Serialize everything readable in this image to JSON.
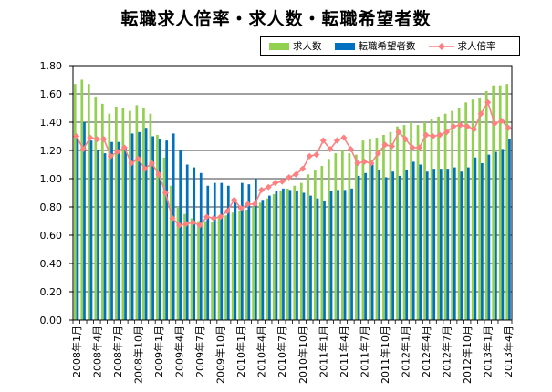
{
  "chart_data": {
    "type": "bar",
    "title": "転職求人倍率・求人数・転職希望者数",
    "xlabel": "",
    "ylabel": "",
    "ylim": [
      0,
      1.8
    ],
    "yticks": [
      "0.00",
      "0.20",
      "0.40",
      "0.60",
      "0.80",
      "1.00",
      "1.20",
      "1.40",
      "1.60",
      "1.80"
    ],
    "grid": true,
    "legend_position": "top-right",
    "categories": [
      "2008年1月",
      "2008年2月",
      "2008年3月",
      "2008年4月",
      "2008年5月",
      "2008年6月",
      "2008年7月",
      "2008年8月",
      "2008年9月",
      "2008年10月",
      "2008年11月",
      "2008年12月",
      "2009年1月",
      "2009年2月",
      "2009年3月",
      "2009年4月",
      "2009年5月",
      "2009年6月",
      "2009年7月",
      "2009年8月",
      "2009年9月",
      "2009年10月",
      "2009年11月",
      "2009年12月",
      "2010年1月",
      "2010年2月",
      "2010年3月",
      "2010年4月",
      "2010年5月",
      "2010年6月",
      "2010年7月",
      "2010年8月",
      "2010年9月",
      "2010年10月",
      "2010年11月",
      "2010年12月",
      "2011年1月",
      "2011年2月",
      "2011年3月",
      "2011年4月",
      "2011年5月",
      "2011年6月",
      "2011年7月",
      "2011年8月",
      "2011年9月",
      "2011年10月",
      "2011年11月",
      "2011年12月",
      "2012年1月",
      "2012年2月",
      "2012年3月",
      "2012年4月",
      "2012年5月",
      "2012年6月",
      "2012年7月",
      "2012年8月",
      "2012年9月",
      "2012年10月",
      "2012年11月",
      "2012年12月",
      "2013年1月",
      "2013年2月",
      "2013年3月",
      "2013年4月"
    ],
    "xtick_labels": [
      "2008年1月",
      "2008年4月",
      "2008年7月",
      "2008年10月",
      "2009年1月",
      "2009年4月",
      "2009年7月",
      "2009年10月",
      "2010年1月",
      "2010年4月",
      "2010年7月",
      "2010年10月",
      "2011年1月",
      "2011年4月",
      "2011年7月",
      "2011年10月",
      "2012年1月",
      "2012年4月",
      "2012年7月",
      "2012年10月",
      "2013年1月",
      "2013年4月"
    ],
    "xtick_indices": [
      0,
      3,
      6,
      9,
      12,
      15,
      18,
      21,
      24,
      27,
      30,
      33,
      36,
      39,
      42,
      45,
      48,
      51,
      54,
      57,
      60,
      63
    ],
    "series": [
      {
        "name": "求人数",
        "kind": "bar",
        "color": "#92d050",
        "values": [
          1.67,
          1.7,
          1.67,
          1.58,
          1.53,
          1.46,
          1.51,
          1.5,
          1.48,
          1.52,
          1.5,
          1.46,
          1.31,
          1.15,
          0.95,
          0.8,
          0.75,
          0.72,
          0.7,
          0.7,
          0.69,
          0.72,
          0.74,
          0.76,
          0.77,
          0.78,
          0.8,
          0.83,
          0.86,
          0.89,
          0.91,
          0.93,
          0.95,
          0.97,
          1.03,
          1.06,
          1.09,
          1.14,
          1.18,
          1.2,
          1.18,
          1.17,
          1.27,
          1.28,
          1.29,
          1.31,
          1.33,
          1.37,
          1.38,
          1.4,
          1.38,
          1.4,
          1.42,
          1.44,
          1.46,
          1.48,
          1.5,
          1.54,
          1.56,
          1.57,
          1.62,
          1.66,
          1.66,
          1.67
        ]
      },
      {
        "name": "転職希望者数",
        "kind": "bar",
        "color": "#0070c0",
        "values": [
          1.28,
          1.4,
          1.27,
          1.2,
          1.18,
          1.26,
          1.26,
          1.22,
          1.32,
          1.33,
          1.36,
          1.3,
          1.28,
          1.27,
          1.32,
          1.2,
          1.1,
          1.08,
          1.04,
          0.95,
          0.97,
          0.97,
          0.95,
          0.84,
          0.97,
          0.96,
          1.0,
          0.85,
          0.88,
          0.91,
          0.93,
          0.92,
          0.91,
          0.9,
          0.88,
          0.86,
          0.84,
          0.91,
          0.92,
          0.92,
          0.93,
          1.02,
          1.04,
          1.1,
          1.06,
          1.01,
          1.05,
          1.02,
          1.06,
          1.12,
          1.1,
          1.05,
          1.07,
          1.07,
          1.07,
          1.08,
          1.05,
          1.08,
          1.15,
          1.11,
          1.17,
          1.19,
          1.21,
          1.28
        ]
      },
      {
        "name": "求人倍率",
        "kind": "line",
        "color": "#ff8080",
        "values": [
          1.3,
          1.21,
          1.29,
          1.28,
          1.28,
          1.16,
          1.19,
          1.22,
          1.11,
          1.14,
          1.07,
          1.11,
          1.03,
          0.9,
          0.72,
          0.67,
          0.68,
          0.69,
          0.67,
          0.73,
          0.72,
          0.73,
          0.77,
          0.85,
          0.79,
          0.82,
          0.82,
          0.92,
          0.94,
          0.97,
          0.98,
          1.01,
          1.03,
          1.07,
          1.16,
          1.17,
          1.27,
          1.21,
          1.27,
          1.29,
          1.21,
          1.11,
          1.12,
          1.11,
          1.18,
          1.24,
          1.23,
          1.33,
          1.28,
          1.22,
          1.22,
          1.31,
          1.3,
          1.31,
          1.33,
          1.37,
          1.38,
          1.37,
          1.35,
          1.46,
          1.54,
          1.39,
          1.41,
          1.36
        ]
      }
    ]
  }
}
